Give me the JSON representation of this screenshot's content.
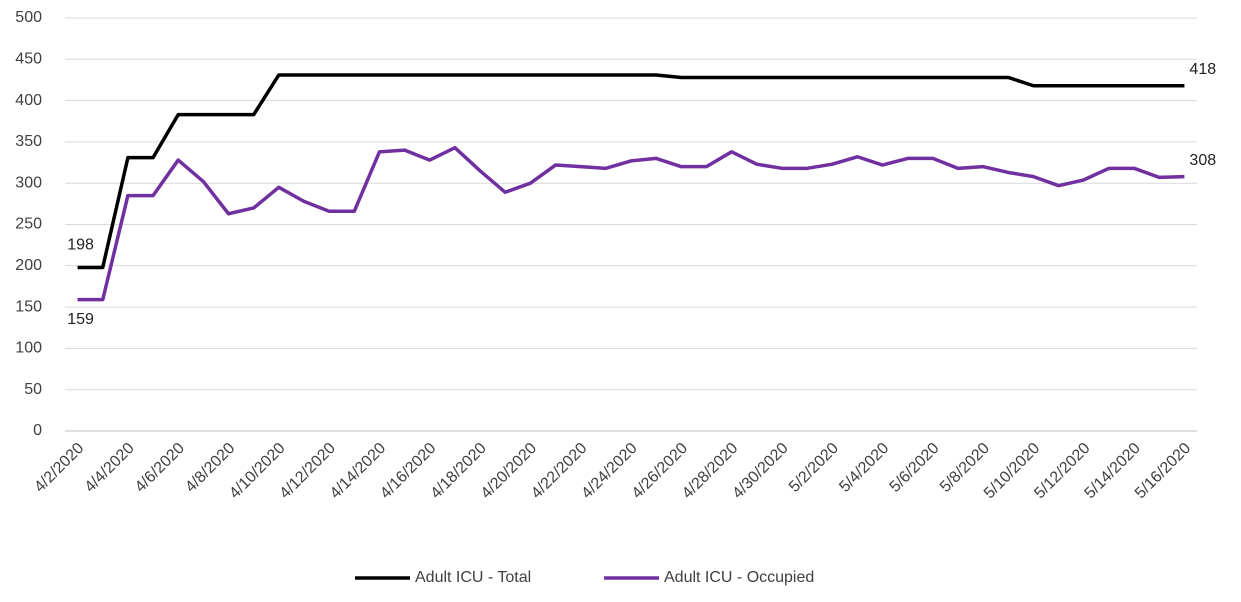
{
  "chart_data": {
    "type": "line",
    "categories": [
      "4/2/2020",
      null,
      "4/4/2020",
      null,
      "4/6/2020",
      null,
      "4/8/2020",
      null,
      "4/10/2020",
      null,
      "4/12/2020",
      null,
      "4/14/2020",
      null,
      "4/16/2020",
      null,
      "4/18/2020",
      null,
      "4/20/2020",
      null,
      "4/22/2020",
      null,
      "4/24/2020",
      null,
      "4/26/2020",
      null,
      "4/28/2020",
      null,
      "4/30/2020",
      null,
      "5/2/2020",
      null,
      "5/4/2020",
      null,
      "5/6/2020",
      null,
      "5/8/2020",
      null,
      "5/10/2020",
      null,
      "5/12/2020",
      null,
      "5/14/2020",
      null,
      "5/16/2020"
    ],
    "series": [
      {
        "name": "Adult ICU - Total",
        "color": "#000000",
        "values": [
          198,
          198,
          331,
          331,
          383,
          383,
          383,
          383,
          431,
          431,
          431,
          431,
          431,
          431,
          431,
          431,
          431,
          431,
          431,
          431,
          431,
          431,
          431,
          431,
          428,
          428,
          428,
          428,
          428,
          428,
          428,
          428,
          428,
          428,
          428,
          428,
          428,
          428,
          418,
          418,
          418,
          418,
          418,
          418,
          418
        ]
      },
      {
        "name": "Adult ICU - Occupied",
        "color": "#7030a0",
        "values": [
          159,
          159,
          285,
          285,
          328,
          302,
          263,
          270,
          295,
          278,
          266,
          266,
          338,
          340,
          328,
          343,
          315,
          289,
          300,
          322,
          320,
          318,
          327,
          330,
          320,
          320,
          338,
          323,
          318,
          318,
          323,
          332,
          322,
          330,
          330,
          318,
          320,
          313,
          308,
          297,
          304,
          318,
          318,
          307,
          308
        ]
      }
    ],
    "ylim": [
      0,
      500
    ],
    "yticks": [
      0,
      50,
      100,
      150,
      200,
      250,
      300,
      350,
      400,
      450,
      500
    ],
    "grid": true,
    "legend": "bottom"
  }
}
